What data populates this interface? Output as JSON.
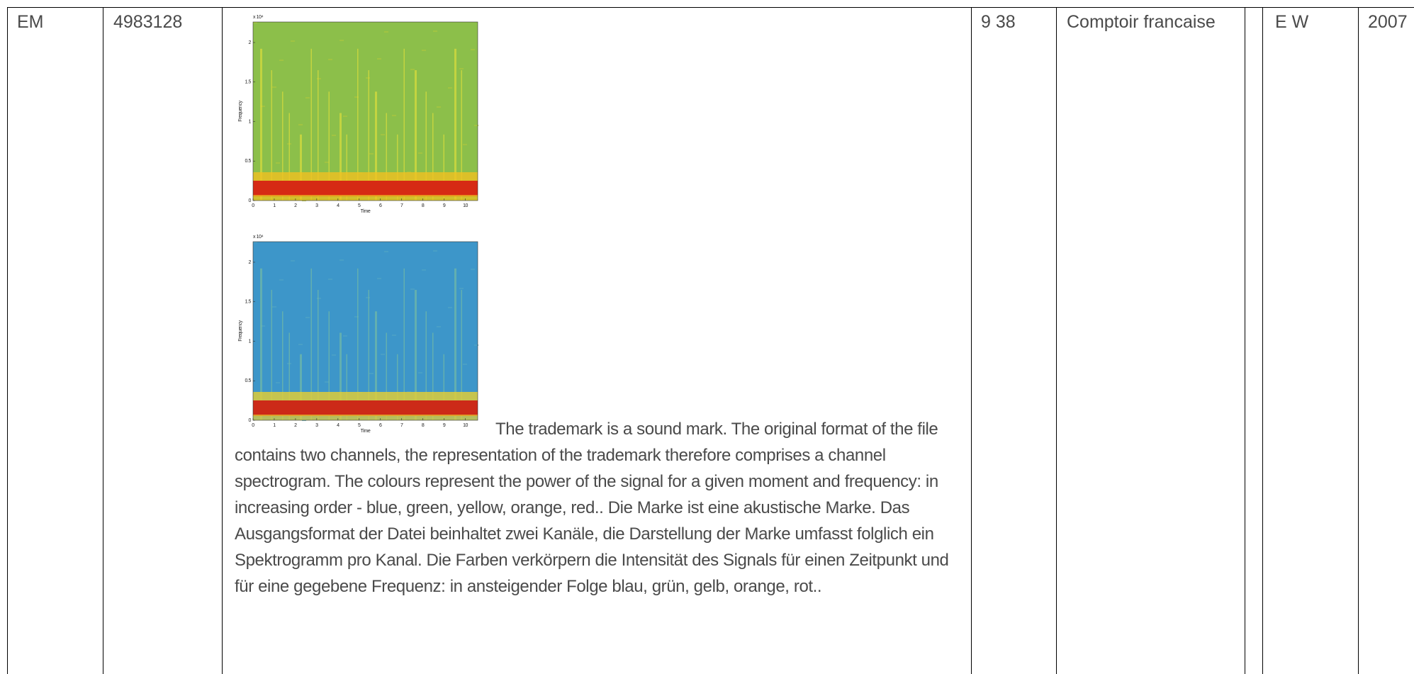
{
  "row": {
    "office": "EM",
    "number": "4983128",
    "spectrograms": [
      {
        "exponent": "x 10⁴",
        "y_label": "Frequency",
        "x_label": "Time",
        "yticks": [
          "0",
          "0.5",
          "1",
          "1.5",
          "2"
        ],
        "xticks": [
          "0",
          "1",
          "2",
          "3",
          "4",
          "5",
          "6",
          "7",
          "8",
          "9",
          "10"
        ]
      },
      {
        "exponent": "x 10⁴",
        "y_label": "Frequency",
        "x_label": "Time",
        "yticks": [
          "0",
          "0.5",
          "1",
          "1.5",
          "2"
        ],
        "xticks": [
          "0",
          "1",
          "2",
          "3",
          "4",
          "5",
          "6",
          "7",
          "8",
          "9",
          "10"
        ]
      }
    ],
    "description": "The trademark is a sound mark. The original format of the file contains two channels, the representation of the trademark therefore comprises a channel spectrogram. The colours represent the power of the signal for a given moment and frequency: in increasing order - blue, green, yellow, orange, red.. Die Marke ist eine akustische Marke. Das Ausgangsformat der Datei beinhaltet zwei Kanäle, die Darstellung der Marke umfasst folglich ein Spektrogramm pro Kanal. Die Farben verkörpern die Intensität des Signals für einen Zeitpunkt und für eine gegebene Frequenz: in ansteigender Folge blau, grün, gelb, orange, rot..",
    "classes": "9 38",
    "owner": "Comptoir francaise",
    "representative": "E W",
    "year": "2007"
  }
}
